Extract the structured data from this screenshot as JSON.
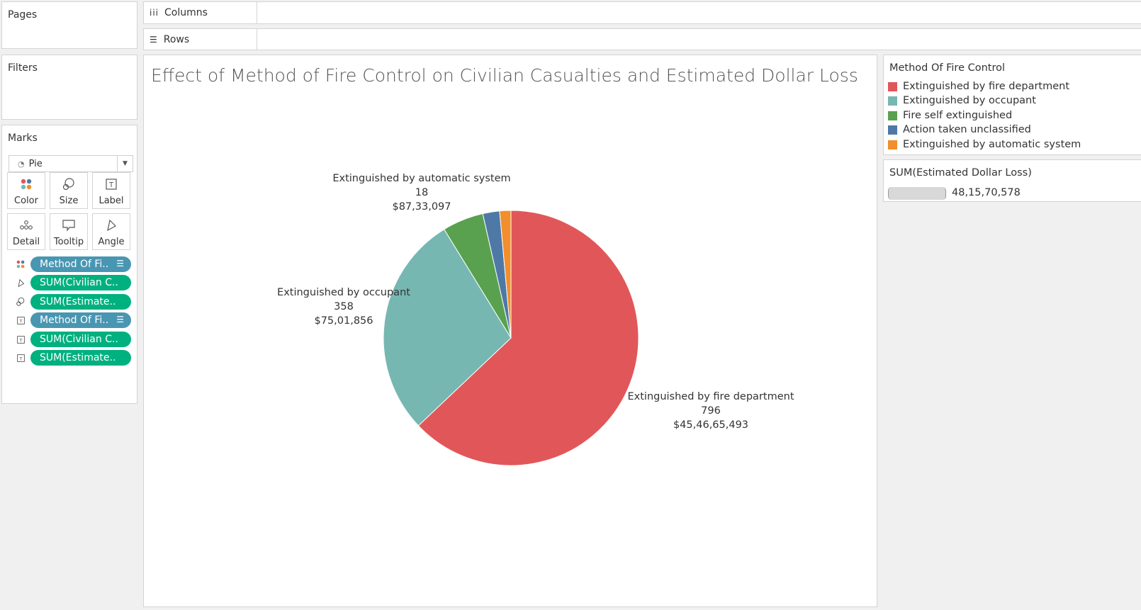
{
  "pages": {
    "label": "Pages"
  },
  "filters": {
    "label": "Filters"
  },
  "marks": {
    "label": "Marks",
    "type": "Pie",
    "buttons": [
      "Color",
      "Size",
      "Label",
      "Detail",
      "Tooltip",
      "Angle"
    ],
    "pills": [
      {
        "text": "Method Of Fi..",
        "kind": "dimension",
        "role": "color",
        "sorted": true
      },
      {
        "text": "SUM(Civilian C..",
        "kind": "measure",
        "role": "angle"
      },
      {
        "text": "SUM(Estimate..",
        "kind": "measure",
        "role": "size"
      },
      {
        "text": "Method Of Fi..",
        "kind": "dimension",
        "role": "label",
        "sorted": true
      },
      {
        "text": "SUM(Civilian C..",
        "kind": "measure",
        "role": "label"
      },
      {
        "text": "SUM(Estimate..",
        "kind": "measure",
        "role": "label"
      }
    ]
  },
  "shelves": {
    "columns": "Columns",
    "rows": "Rows"
  },
  "view": {
    "title": "Effect of Method of Fire Control on Civilian Casualties and Estimated Dollar Loss"
  },
  "legend_color": {
    "title": "Method Of Fire Control",
    "items": [
      {
        "label": "Extinguished by fire department",
        "color": "#e15759"
      },
      {
        "label": "Extinguished by occupant",
        "color": "#76b7b2"
      },
      {
        "label": "Fire self extinguished",
        "color": "#59a14f"
      },
      {
        "label": "Action taken unclassified",
        "color": "#4e79a7"
      },
      {
        "label": "Extinguished by automatic system",
        "color": "#f28e2b"
      }
    ]
  },
  "legend_size": {
    "title": "SUM(Estimated Dollar Loss)",
    "value": "48,15,70,578"
  },
  "chart_data": {
    "type": "pie",
    "title": "Effect of Method of Fire Control on Civilian Casualties and Estimated Dollar Loss",
    "slices": [
      {
        "label": "Extinguished by fire department",
        "value": 796,
        "dollar_loss": "$45,46,65,493",
        "color": "#e15759",
        "labeled": true
      },
      {
        "label": "Extinguished by occupant",
        "value": 358,
        "dollar_loss": "$75,01,856",
        "color": "#76b7b2",
        "labeled": true
      },
      {
        "label": "Fire self extinguished",
        "value": 66,
        "color": "#59a14f",
        "labeled": false
      },
      {
        "label": "Action taken unclassified",
        "value": 27,
        "color": "#4e79a7",
        "labeled": false
      },
      {
        "label": "Extinguished by automatic system",
        "value": 18,
        "dollar_loss": "$87,33,097",
        "color": "#f28e2b",
        "labeled": true
      }
    ],
    "legend": "right"
  }
}
